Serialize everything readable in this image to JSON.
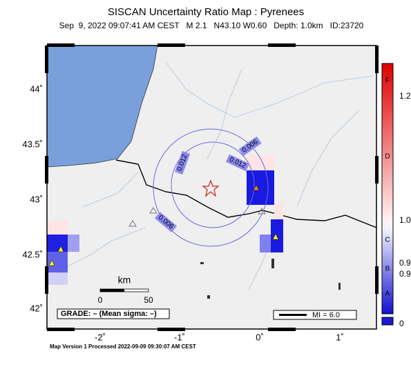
{
  "header": {
    "title": "SISCAN Uncertainty Ratio Map : Pyrenees",
    "subtitle": "Sep  9, 2022 09:07:41 AM CEST   M 2.1   N43.10 W0.60   Depth: 1.0km   ID:23720"
  },
  "map": {
    "lat_labels": [
      "44˚",
      "43.5˚",
      "43˚",
      "42.5˚",
      "42˚"
    ],
    "lon_labels": [
      "-2˚",
      "-1˚",
      "0˚",
      "1˚"
    ],
    "contour_labels": [
      "0.006",
      "0.012",
      "0.012",
      "0.006"
    ],
    "scale": {
      "unit": "km",
      "start": "0",
      "end": "50"
    },
    "grade": "GRADE: – (Mean sigma: –)",
    "mi": "MI = 6.0"
  },
  "colorbar": {
    "letters": [
      "F",
      "D",
      "C",
      "B",
      "A"
    ],
    "values": [
      "1.2",
      "1.0",
      "0.9",
      "0.9",
      "0"
    ]
  },
  "footer": "Map Version 1 Processed 2022-09-09 09:30:07 AM CEST"
}
